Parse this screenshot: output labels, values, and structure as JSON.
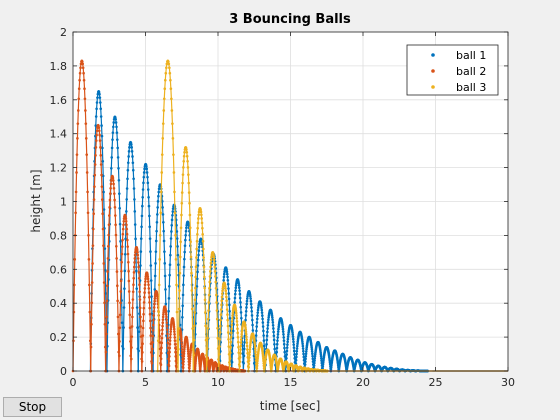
{
  "window": {
    "stop_label": "Stop"
  },
  "chart_data": {
    "type": "scatter",
    "title": "3 Bouncing Balls",
    "xlabel": "time [sec]",
    "ylabel": "height [m]",
    "xlim": [
      0,
      30
    ],
    "ylim": [
      0,
      2
    ],
    "xticks": [
      0,
      5,
      10,
      15,
      20,
      25,
      30
    ],
    "yticks": [
      0,
      0.2,
      0.4,
      0.6,
      0.8,
      1,
      1.2,
      1.4,
      1.6,
      1.8,
      2
    ],
    "grid": true,
    "legend_position": "top-right",
    "series": [
      {
        "name": "ball 1",
        "color": "#0072BD",
        "bounce_starts": [
          1.2,
          2.34,
          3.44,
          4.5,
          5.52,
          6.5,
          7.45,
          8.37,
          9.26,
          10.12,
          10.95,
          11.75,
          12.52,
          13.26,
          13.98,
          14.67,
          15.34,
          15.98,
          16.6,
          17.2,
          17.78,
          18.33,
          18.87,
          19.39,
          19.89,
          20.37,
          20.83,
          21.28,
          21.71,
          22.12,
          22.52,
          22.9,
          23.27,
          23.62,
          23.96,
          24.29
        ],
        "bounce_peaks": [
          1.65,
          1.5,
          1.35,
          1.22,
          1.1,
          0.98,
          0.88,
          0.78,
          0.69,
          0.61,
          0.54,
          0.47,
          0.41,
          0.36,
          0.31,
          0.27,
          0.23,
          0.2,
          0.17,
          0.14,
          0.12,
          0.1,
          0.08,
          0.065,
          0.05,
          0.04,
          0.03,
          0.023,
          0.017,
          0.012,
          0.008,
          0.005,
          0.003,
          0.002,
          0.001,
          0.0005
        ]
      },
      {
        "name": "ball 2",
        "color": "#D95319",
        "bounce_starts": [
          0,
          1.22,
          2.25,
          3.17,
          4.0,
          4.75,
          5.43,
          6.05,
          6.61,
          7.12,
          7.59,
          8.02,
          8.41,
          8.77,
          9.1,
          9.4,
          9.68,
          9.94,
          10.18,
          10.4,
          10.6,
          10.78,
          10.95,
          11.1,
          11.24,
          11.37,
          11.49,
          11.6,
          11.7,
          11.79
        ],
        "bounce_peaks": [
          1.83,
          1.45,
          1.15,
          0.92,
          0.73,
          0.58,
          0.47,
          0.38,
          0.31,
          0.25,
          0.2,
          0.16,
          0.13,
          0.1,
          0.08,
          0.065,
          0.05,
          0.04,
          0.032,
          0.025,
          0.02,
          0.015,
          0.012,
          0.009,
          0.007,
          0.005,
          0.004,
          0.003,
          0.002,
          0.001
        ]
      },
      {
        "name": "ball 3",
        "color": "#EDB120",
        "bounce_starts": [
          5.84,
          7.24,
          8.3,
          9.22,
          10.05,
          10.8,
          11.48,
          12.1,
          12.67,
          13.19,
          13.67,
          14.11,
          14.51,
          14.88,
          15.22,
          15.53,
          15.82,
          16.09,
          16.34,
          16.57,
          16.78,
          16.97,
          17.15,
          17.31,
          17.46
        ],
        "bounce_peaks": [
          1.83,
          1.32,
          0.96,
          0.7,
          0.52,
          0.39,
          0.29,
          0.22,
          0.165,
          0.125,
          0.095,
          0.072,
          0.055,
          0.042,
          0.032,
          0.024,
          0.018,
          0.014,
          0.01,
          0.008,
          0.006,
          0.004,
          0.003,
          0.002,
          0.001
        ]
      }
    ]
  }
}
